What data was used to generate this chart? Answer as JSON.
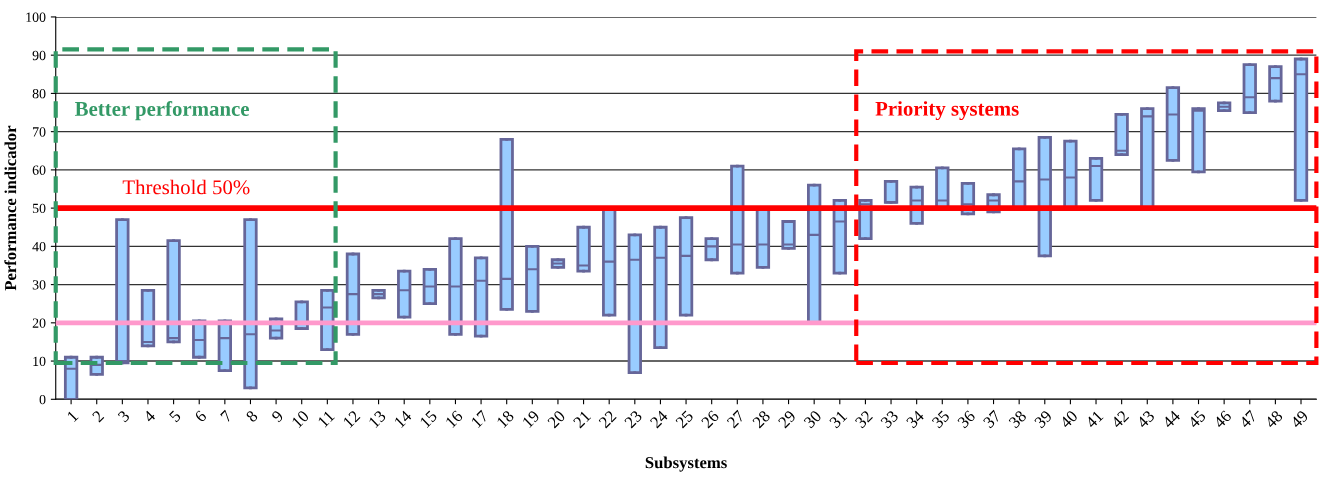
{
  "chart_data": {
    "type": "box",
    "xlabel": "Subsystems",
    "ylabel": "Performance indicador",
    "categories": [
      "1",
      "2",
      "3",
      "4",
      "5",
      "6",
      "7",
      "8",
      "9",
      "10",
      "11",
      "12",
      "13",
      "14",
      "15",
      "16",
      "17",
      "18",
      "19",
      "20",
      "21",
      "22",
      "23",
      "24",
      "25",
      "26",
      "27",
      "28",
      "29",
      "30",
      "31",
      "32",
      "33",
      "34",
      "35",
      "36",
      "37",
      "38",
      "39",
      "40",
      "41",
      "42",
      "43",
      "44",
      "45",
      "46",
      "47",
      "48",
      "49"
    ],
    "series": [
      {
        "color": "#99ccff",
        "boxes": [
          {
            "low": 0,
            "q1": 0,
            "median": 8,
            "q3": 11,
            "high": 11
          },
          {
            "low": 6.5,
            "q1": 6.5,
            "median": 9,
            "q3": 11,
            "high": 11
          },
          {
            "low": 9.5,
            "q1": 9.5,
            "median": 10,
            "q3": 47,
            "high": 47
          },
          {
            "low": 14,
            "q1": 14,
            "median": 15,
            "q3": 28.5,
            "high": 28.5
          },
          {
            "low": 15,
            "q1": 15,
            "median": 16,
            "q3": 41.5,
            "high": 41.5
          },
          {
            "low": 11,
            "q1": 11,
            "median": 15.5,
            "q3": 20.5,
            "high": 20.5
          },
          {
            "low": 7.5,
            "q1": 7.5,
            "median": 16,
            "q3": 20.5,
            "high": 20.5
          },
          {
            "low": 3,
            "q1": 3,
            "median": 17,
            "q3": 47,
            "high": 47
          },
          {
            "low": 16,
            "q1": 16,
            "median": 18,
            "q3": 21,
            "high": 21
          },
          {
            "low": 18.5,
            "q1": 18.5,
            "median": 18.5,
            "q3": 25.5,
            "high": 25.5
          },
          {
            "low": 13,
            "q1": 13,
            "median": 24,
            "q3": 28.5,
            "high": 28.5
          },
          {
            "low": 17,
            "q1": 17,
            "median": 27.5,
            "q3": 38,
            "high": 38
          },
          {
            "low": 26.5,
            "q1": 26.5,
            "median": 27.5,
            "q3": 28.5,
            "high": 28.5
          },
          {
            "low": 21.5,
            "q1": 21.5,
            "median": 28.5,
            "q3": 33.5,
            "high": 33.5
          },
          {
            "low": 25,
            "q1": 25,
            "median": 29.5,
            "q3": 34,
            "high": 34
          },
          {
            "low": 17,
            "q1": 17,
            "median": 29.5,
            "q3": 42,
            "high": 42
          },
          {
            "low": 16.5,
            "q1": 16.5,
            "median": 31,
            "q3": 37,
            "high": 37
          },
          {
            "low": 23.5,
            "q1": 23.5,
            "median": 31.5,
            "q3": 68,
            "high": 68
          },
          {
            "low": 23,
            "q1": 23,
            "median": 34,
            "q3": 40,
            "high": 40
          },
          {
            "low": 34.5,
            "q1": 34.5,
            "median": 35.5,
            "q3": 36.5,
            "high": 36.5
          },
          {
            "low": 33.5,
            "q1": 33.5,
            "median": 35,
            "q3": 45,
            "high": 45
          },
          {
            "low": 22,
            "q1": 22,
            "median": 36,
            "q3": 50,
            "high": 50
          },
          {
            "low": 7,
            "q1": 7,
            "median": 36.5,
            "q3": 43,
            "high": 43
          },
          {
            "low": 13.5,
            "q1": 13.5,
            "median": 37,
            "q3": 45,
            "high": 45
          },
          {
            "low": 22,
            "q1": 22,
            "median": 37.5,
            "q3": 47.5,
            "high": 47.5
          },
          {
            "low": 36.5,
            "q1": 36.5,
            "median": 40,
            "q3": 42,
            "high": 42
          },
          {
            "low": 33,
            "q1": 33,
            "median": 40.5,
            "q3": 61,
            "high": 61
          },
          {
            "low": 34.5,
            "q1": 34.5,
            "median": 40.5,
            "q3": 50,
            "high": 50
          },
          {
            "low": 39.5,
            "q1": 39.5,
            "median": 40.5,
            "q3": 46.5,
            "high": 46.5
          },
          {
            "low": 20,
            "q1": 20,
            "median": 43,
            "q3": 56,
            "high": 56
          },
          {
            "low": 33,
            "q1": 33,
            "median": 46.5,
            "q3": 52,
            "high": 52
          },
          {
            "low": 42,
            "q1": 42,
            "median": 51,
            "q3": 52,
            "high": 52
          },
          {
            "low": 51.5,
            "q1": 51.5,
            "median": 51.5,
            "q3": 57,
            "high": 57
          },
          {
            "low": 46,
            "q1": 46,
            "median": 52,
            "q3": 55.5,
            "high": 55.5
          },
          {
            "low": 50,
            "q1": 50,
            "median": 52,
            "q3": 60.5,
            "high": 60.5
          },
          {
            "low": 48.5,
            "q1": 48.5,
            "median": 51,
            "q3": 56.5,
            "high": 56.5
          },
          {
            "low": 49,
            "q1": 49,
            "median": 52,
            "q3": 53.5,
            "high": 53.5
          },
          {
            "low": 50,
            "q1": 50,
            "median": 57,
            "q3": 65.5,
            "high": 65.5
          },
          {
            "low": 37.5,
            "q1": 37.5,
            "median": 57.5,
            "q3": 68.5,
            "high": 68.5
          },
          {
            "low": 50,
            "q1": 50,
            "median": 58,
            "q3": 67.5,
            "high": 67.5
          },
          {
            "low": 52,
            "q1": 52,
            "median": 61,
            "q3": 63,
            "high": 63
          },
          {
            "low": 64,
            "q1": 64,
            "median": 65,
            "q3": 74.5,
            "high": 74.5
          },
          {
            "low": 50,
            "q1": 50,
            "median": 74,
            "q3": 76,
            "high": 76
          },
          {
            "low": 62.5,
            "q1": 62.5,
            "median": 74.5,
            "q3": 81.5,
            "high": 81.5
          },
          {
            "low": 59.5,
            "q1": 59.5,
            "median": 75.5,
            "q3": 76,
            "high": 76
          },
          {
            "low": 75.5,
            "q1": 75.5,
            "median": 76.5,
            "q3": 77.5,
            "high": 77.5
          },
          {
            "low": 75,
            "q1": 75,
            "median": 79,
            "q3": 87.5,
            "high": 87.5
          },
          {
            "low": 78,
            "q1": 78,
            "median": 84,
            "q3": 87,
            "high": 87
          },
          {
            "low": 52,
            "q1": 52,
            "median": 85,
            "q3": 89,
            "high": 89
          }
        ]
      }
    ],
    "ylim": [
      0,
      100
    ],
    "yticks": [
      0,
      10,
      20,
      30,
      40,
      50,
      60,
      70,
      80,
      90,
      100
    ],
    "grid": "y",
    "ref_lines": [
      {
        "axis": "y",
        "value": 50,
        "label": "Threshold 50%",
        "color": "#ff0000"
      },
      {
        "axis": "y",
        "value": 20,
        "color": "#ff99cc"
      }
    ],
    "annotations": [
      "Better performance",
      "Priority systems"
    ]
  }
}
